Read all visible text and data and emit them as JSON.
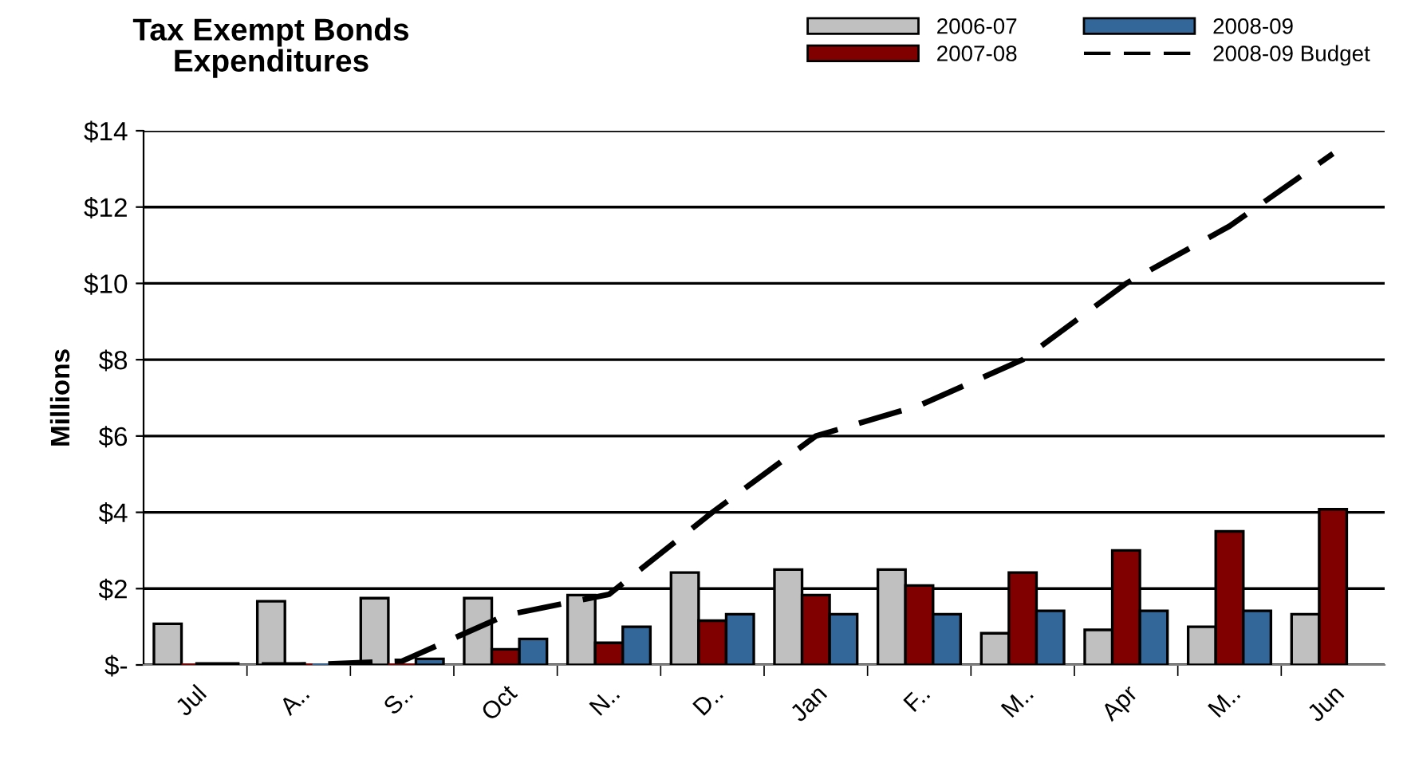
{
  "chart_data": {
    "type": "bar",
    "title": "Tax Exempt Bonds\nExpenditures",
    "ylabel": "Millions",
    "categories": [
      "Jul",
      "A..",
      "S..",
      "Oct",
      "N..",
      "D..",
      "Jan",
      "F..",
      "M..",
      "Apr",
      "M..",
      "Jun"
    ],
    "series": [
      {
        "name": "2006-07",
        "color": "#c0c0c0",
        "values": [
          1.08,
          1.67,
          1.75,
          1.75,
          1.83,
          2.42,
          2.5,
          2.5,
          0.83,
          0.92,
          1.0,
          1.33
        ]
      },
      {
        "name": "2007-08",
        "color": "#800000",
        "values": [
          0,
          0,
          0,
          0.41,
          0.58,
          1.16,
          1.83,
          2.08,
          2.42,
          3.0,
          3.5,
          4.08
        ]
      },
      {
        "name": "2008-09",
        "color": "#336699",
        "values": [
          0,
          0,
          0.16,
          0.68,
          1.0,
          1.33,
          1.33,
          1.33,
          1.42,
          1.42,
          1.42,
          null
        ]
      },
      {
        "name": "2008-09 Budget",
        "type": "line",
        "color": "#000000",
        "line_style": "dashed",
        "values": [
          0,
          0,
          0.1,
          1.3,
          1.85,
          4.0,
          6.0,
          6.8,
          8.0,
          10.0,
          11.5,
          13.4
        ]
      }
    ],
    "ylim": [
      0,
      14
    ],
    "yticks": [
      {
        "value": 0,
        "label": "$-"
      },
      {
        "value": 2,
        "label": "$2"
      },
      {
        "value": 4,
        "label": "$4"
      },
      {
        "value": 6,
        "label": "$6"
      },
      {
        "value": 8,
        "label": "$8"
      },
      {
        "value": 10,
        "label": "$10"
      },
      {
        "value": 12,
        "label": "$12"
      },
      {
        "value": 14,
        "label": "$14"
      }
    ],
    "grid": "y",
    "legend": "top right",
    "marker": "none"
  }
}
